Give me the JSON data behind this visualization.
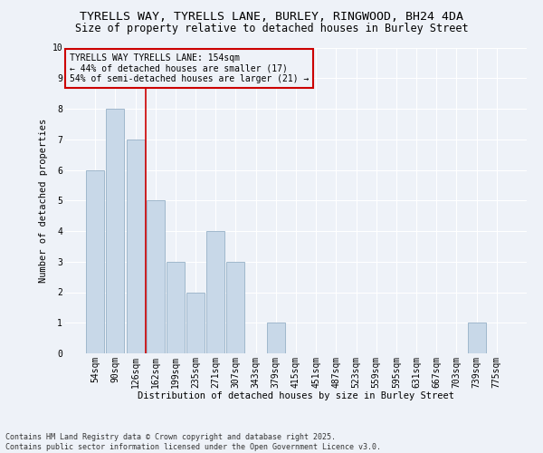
{
  "title1": "TYRELLS WAY, TYRELLS LANE, BURLEY, RINGWOOD, BH24 4DA",
  "title2": "Size of property relative to detached houses in Burley Street",
  "xlabel": "Distribution of detached houses by size in Burley Street",
  "ylabel": "Number of detached properties",
  "categories": [
    "54sqm",
    "90sqm",
    "126sqm",
    "162sqm",
    "199sqm",
    "235sqm",
    "271sqm",
    "307sqm",
    "343sqm",
    "379sqm",
    "415sqm",
    "451sqm",
    "487sqm",
    "523sqm",
    "559sqm",
    "595sqm",
    "631sqm",
    "667sqm",
    "703sqm",
    "739sqm",
    "775sqm"
  ],
  "values": [
    6,
    8,
    7,
    5,
    3,
    2,
    4,
    3,
    0,
    1,
    0,
    0,
    0,
    0,
    0,
    0,
    0,
    0,
    0,
    1,
    0
  ],
  "bar_color": "#c8d8e8",
  "bar_edge_color": "#a0b8cc",
  "vline_x": 2.5,
  "vline_color": "#cc0000",
  "annotation_line1": "TYRELLS WAY TYRELLS LANE: 154sqm",
  "annotation_line2": "← 44% of detached houses are smaller (17)",
  "annotation_line3": "54% of semi-detached houses are larger (21) →",
  "box_edge_color": "#cc0000",
  "ylim": [
    0,
    10
  ],
  "yticks": [
    0,
    1,
    2,
    3,
    4,
    5,
    6,
    7,
    8,
    9,
    10
  ],
  "footer_text": "Contains HM Land Registry data © Crown copyright and database right 2025.\nContains public sector information licensed under the Open Government Licence v3.0.",
  "bg_color": "#eef2f8",
  "plot_bg_color": "#eef2f8",
  "grid_color": "#ffffff",
  "title_fontsize": 9.5,
  "subtitle_fontsize": 8.5,
  "axis_label_fontsize": 7.5,
  "tick_fontsize": 7,
  "annotation_fontsize": 7,
  "footer_fontsize": 6
}
